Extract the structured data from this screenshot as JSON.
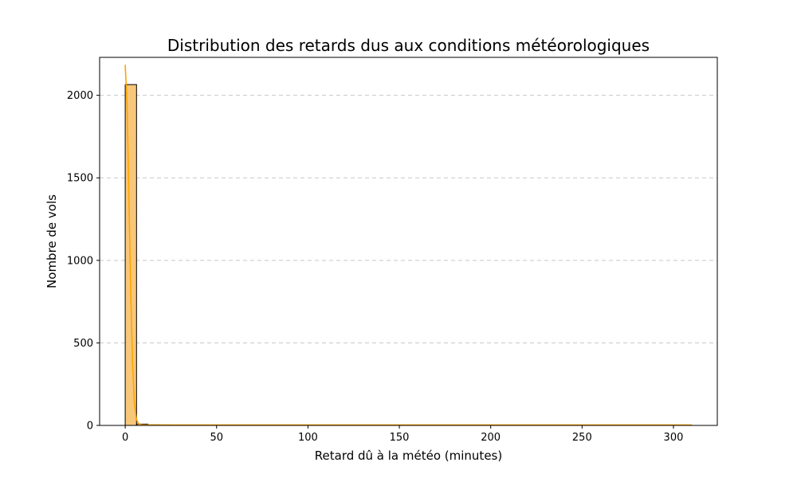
{
  "chart_data": {
    "type": "bar",
    "title": "Distribution des retards dus aux conditions météorologiques",
    "xlabel": "Retard dû à la météo (minutes)",
    "ylabel": "Nombre de vols",
    "xlim": [
      -14,
      324
    ],
    "ylim": [
      0,
      2230
    ],
    "xticks": [
      0,
      50,
      100,
      150,
      200,
      250,
      300
    ],
    "yticks": [
      0,
      500,
      1000,
      1500,
      2000
    ],
    "grid": "y-dashed",
    "bar_color": "#F8C77A",
    "bar_edge_color": "#000000",
    "line_color": "#FFA500",
    "bins": [
      {
        "x0": 0,
        "x1": 6.2,
        "count": 2065
      },
      {
        "x0": 6.2,
        "x1": 12.4,
        "count": 8
      },
      {
        "x0": 12.4,
        "x1": 18.6,
        "count": 4
      },
      {
        "x0": 18.6,
        "x1": 24.8,
        "count": 3
      },
      {
        "x0": 24.8,
        "x1": 31,
        "count": 2
      },
      {
        "x0": 31,
        "x1": 37.2,
        "count": 2
      },
      {
        "x0": 37.2,
        "x1": 43.4,
        "count": 1
      },
      {
        "x0": 43.4,
        "x1": 49.6,
        "count": 1
      },
      {
        "x0": 49.6,
        "x1": 55.8,
        "count": 1
      },
      {
        "x0": 55.8,
        "x1": 62,
        "count": 1
      },
      {
        "x0": 62,
        "x1": 68.2,
        "count": 1
      },
      {
        "x0": 68.2,
        "x1": 74.4,
        "count": 1
      },
      {
        "x0": 74.4,
        "x1": 80.6,
        "count": 1
      },
      {
        "x0": 80.6,
        "x1": 86.8,
        "count": 1
      },
      {
        "x0": 93,
        "x1": 99.2,
        "count": 1
      },
      {
        "x0": 105.4,
        "x1": 111.6,
        "count": 1
      },
      {
        "x0": 124,
        "x1": 130.2,
        "count": 1
      },
      {
        "x0": 148.8,
        "x1": 155,
        "count": 1
      },
      {
        "x0": 179.8,
        "x1": 186,
        "count": 1
      },
      {
        "x0": 303.8,
        "x1": 310,
        "count": 1
      }
    ],
    "kde": {
      "x": [
        0,
        1,
        2,
        3,
        4,
        5,
        6,
        7,
        8,
        10,
        15,
        50,
        100,
        150,
        200,
        250,
        310
      ],
      "y": [
        2185,
        1950,
        1400,
        820,
        380,
        140,
        45,
        15,
        5,
        3,
        3,
        3,
        3,
        3,
        3,
        3,
        3
      ]
    }
  }
}
